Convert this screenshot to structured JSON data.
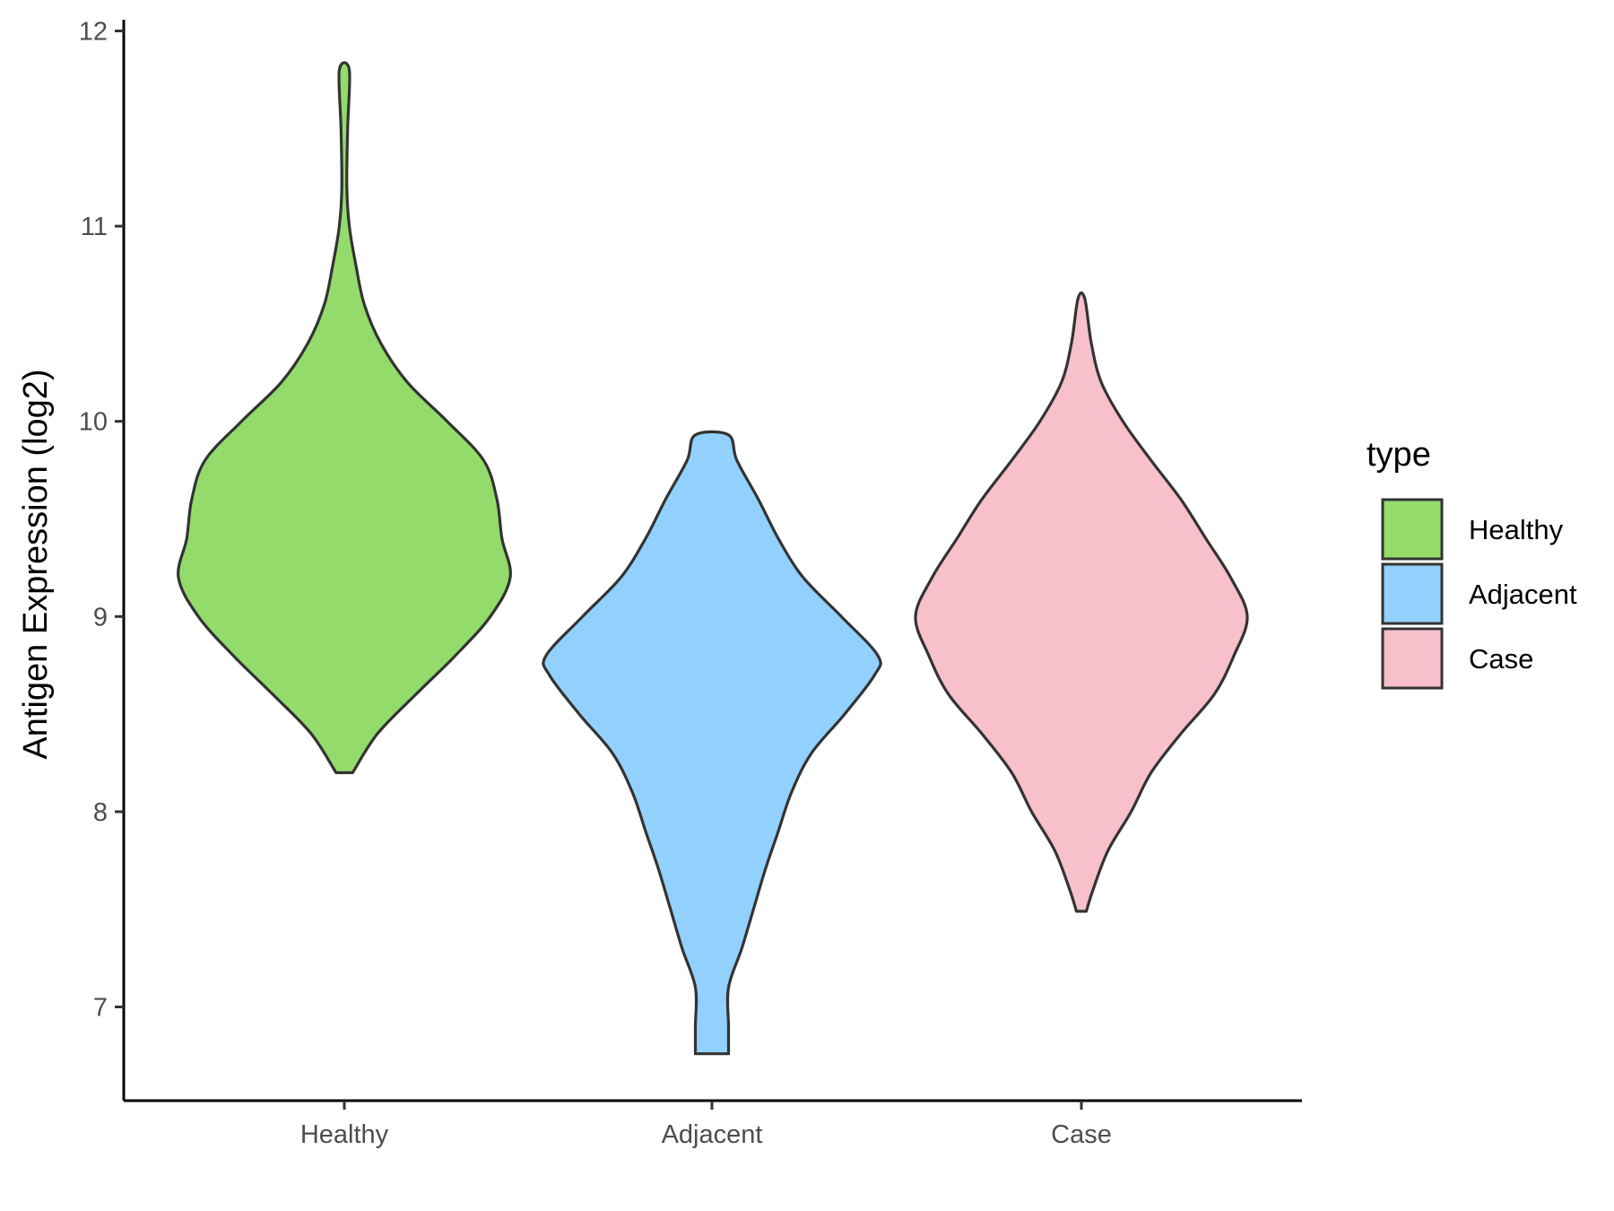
{
  "chart_data": {
    "type": "violin",
    "ylabel": "Antigen Expression (log2)",
    "xlabel": "",
    "ylim": [
      6.5,
      12.1
    ],
    "yticks": [
      7,
      8,
      9,
      10,
      11,
      12
    ],
    "categories": [
      "Healthy",
      "Adjacent",
      "Case"
    ],
    "legend": {
      "title": "type",
      "placement": "right",
      "entries": [
        "Healthy",
        "Adjacent",
        "Case"
      ]
    },
    "grid": false,
    "series": [
      {
        "name": "Healthy",
        "color": "#93DC6B",
        "min": 8.2,
        "max": 11.8,
        "density_profile": [
          [
            8.2,
            0.05
          ],
          [
            8.4,
            0.2
          ],
          [
            8.6,
            0.43
          ],
          [
            8.8,
            0.67
          ],
          [
            9.0,
            0.88
          ],
          [
            9.2,
            1.0
          ],
          [
            9.4,
            0.95
          ],
          [
            9.6,
            0.92
          ],
          [
            9.8,
            0.84
          ],
          [
            10.0,
            0.62
          ],
          [
            10.2,
            0.38
          ],
          [
            10.4,
            0.22
          ],
          [
            10.6,
            0.12
          ],
          [
            10.8,
            0.07
          ],
          [
            11.0,
            0.03
          ],
          [
            11.2,
            0.015
          ],
          [
            11.5,
            0.02
          ],
          [
            11.8,
            0.03
          ]
        ]
      },
      {
        "name": "Adjacent",
        "color": "#92D1FD",
        "min": 6.76,
        "max": 9.93,
        "density_profile": [
          [
            6.76,
            0.1
          ],
          [
            6.9,
            0.1
          ],
          [
            7.1,
            0.1
          ],
          [
            7.3,
            0.18
          ],
          [
            7.5,
            0.25
          ],
          [
            7.7,
            0.32
          ],
          [
            7.9,
            0.4
          ],
          [
            8.1,
            0.48
          ],
          [
            8.3,
            0.6
          ],
          [
            8.5,
            0.8
          ],
          [
            8.7,
            0.98
          ],
          [
            8.8,
            1.0
          ],
          [
            9.0,
            0.78
          ],
          [
            9.2,
            0.55
          ],
          [
            9.4,
            0.4
          ],
          [
            9.6,
            0.28
          ],
          [
            9.8,
            0.15
          ],
          [
            9.93,
            0.1
          ]
        ]
      },
      {
        "name": "Case",
        "color": "#F7C0CB",
        "min": 7.49,
        "max": 10.63,
        "density_profile": [
          [
            7.49,
            0.03
          ],
          [
            7.6,
            0.07
          ],
          [
            7.8,
            0.16
          ],
          [
            8.0,
            0.3
          ],
          [
            8.2,
            0.42
          ],
          [
            8.4,
            0.6
          ],
          [
            8.6,
            0.8
          ],
          [
            8.8,
            0.92
          ],
          [
            9.0,
            1.0
          ],
          [
            9.2,
            0.9
          ],
          [
            9.4,
            0.75
          ],
          [
            9.6,
            0.6
          ],
          [
            9.8,
            0.42
          ],
          [
            10.0,
            0.25
          ],
          [
            10.2,
            0.12
          ],
          [
            10.4,
            0.06
          ],
          [
            10.63,
            0.02
          ]
        ]
      }
    ]
  }
}
